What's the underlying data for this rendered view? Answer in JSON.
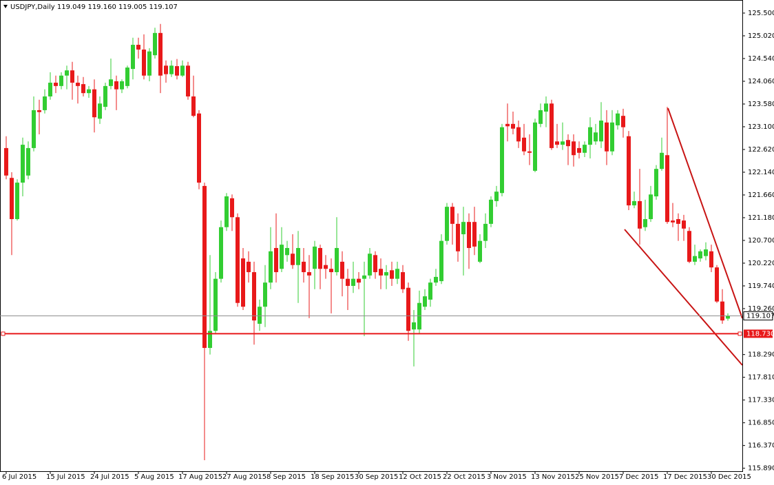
{
  "chart_data": {
    "type": "candlestick",
    "title": "USDJPY,Daily",
    "quote_labels": [
      "119.049",
      "119.160",
      "119.005",
      "119.107"
    ],
    "up_color": "#32cd32",
    "down_color": "#e8191a",
    "categories": [
      "6 Jul 2015",
      null,
      null,
      null,
      null,
      null,
      null,
      null,
      "15 Jul 2015",
      null,
      null,
      null,
      null,
      null,
      null,
      null,
      "24 Jul 2015",
      null,
      null,
      null,
      null,
      null,
      null,
      null,
      "5 Aug 2015",
      null,
      null,
      null,
      null,
      null,
      null,
      null,
      "17 Aug 2015",
      null,
      null,
      null,
      null,
      null,
      null,
      null,
      "27 Aug 2015",
      null,
      null,
      null,
      null,
      null,
      null,
      null,
      "8 Sep 2015",
      null,
      null,
      null,
      null,
      null,
      null,
      null,
      "18 Sep 2015",
      null,
      null,
      null,
      null,
      null,
      null,
      null,
      "30 Sep 2015",
      null,
      null,
      null,
      null,
      null,
      null,
      null,
      "12 Oct 2015",
      null,
      null,
      null,
      null,
      null,
      null,
      null,
      "22 Oct 2015",
      null,
      null,
      null,
      null,
      null,
      null,
      null,
      "3 Nov 2015",
      null,
      null,
      null,
      null,
      null,
      null,
      null,
      "13 Nov 2015",
      null,
      null,
      null,
      null,
      null,
      null,
      null,
      "25 Nov 2015",
      null,
      null,
      null,
      null,
      null,
      null,
      null,
      "7 Dec 2015",
      null,
      null,
      null,
      null,
      null,
      null,
      null,
      "17 Dec 2015",
      null,
      null,
      null,
      null,
      null,
      null,
      null,
      "30 Dec 2015",
      null,
      null,
      null
    ],
    "open": [
      122.65,
      122.02,
      121.15,
      121.92,
      122.07,
      122.65,
      123.45,
      123.45,
      123.74,
      124.03,
      123.96,
      124.18,
      124.29,
      124.03,
      124.0,
      123.81,
      123.89,
      123.27,
      123.52,
      123.96,
      124.06,
      123.89,
      123.96,
      124.32,
      124.83,
      124.73,
      124.18,
      124.61,
      125.08,
      124.39,
      124.21,
      124.38,
      124.18,
      124.39,
      123.74,
      123.38,
      121.85,
      118.43,
      118.79,
      119.89,
      120.98,
      121.59,
      121.19,
      120.32,
      120.25,
      120.03,
      118.94,
      119.3,
      119.81,
      120.54,
      120.1,
      120.39,
      120.42,
      120.18,
      120.25,
      120.03,
      120.1,
      120.54,
      120.18,
      120.1,
      120.03,
      120.25,
      119.89,
      119.74,
      119.89,
      119.89,
      119.96,
      120.39,
      120.1,
      119.96,
      120.07,
      119.89,
      120.03,
      119.7,
      118.82,
      118.82,
      119.3,
      119.45,
      119.81,
      119.84,
      120.69,
      121.41,
      121.05,
      120.83,
      121.09,
      121.09,
      120.25,
      120.69,
      121.05,
      121.53,
      121.7,
      123.16,
      123.16,
      123.09,
      122.87,
      122.58,
      122.17,
      123.16,
      123.42,
      123.59,
      122.79,
      122.72,
      122.82,
      122.79,
      122.65,
      122.55,
      122.72,
      122.79,
      122.79,
      123.19,
      122.58,
      123.13,
      123.33,
      122.9,
      121.44,
      121.53,
      120.98,
      121.15,
      121.63,
      122.21,
      122.5,
      121.12,
      121.15,
      121.12,
      120.9,
      120.25,
      120.32,
      120.37,
      120.47,
      120.13,
      119.41,
      119.049
    ],
    "high": [
      122.9,
      122.14,
      121.99,
      122.87,
      122.79,
      123.74,
      123.67,
      123.89,
      124.25,
      124.18,
      124.25,
      124.39,
      124.47,
      124.18,
      124.15,
      123.96,
      124.1,
      123.74,
      124.03,
      124.54,
      124.18,
      124.1,
      124.39,
      124.98,
      124.98,
      125.05,
      124.76,
      125.19,
      125.27,
      124.5,
      124.5,
      124.53,
      124.5,
      124.47,
      124.18,
      123.45,
      121.92,
      120.39,
      120.03,
      121.12,
      121.7,
      121.67,
      121.27,
      120.54,
      120.47,
      120.25,
      119.45,
      120.18,
      120.98,
      121.27,
      120.98,
      120.69,
      120.83,
      120.9,
      120.54,
      120.39,
      120.69,
      120.61,
      120.39,
      120.32,
      121.19,
      120.47,
      120.1,
      120.25,
      120.03,
      120.25,
      120.54,
      120.47,
      120.32,
      120.18,
      120.25,
      120.25,
      120.18,
      119.81,
      119.23,
      119.64,
      119.67,
      119.89,
      120.1,
      120.83,
      121.49,
      121.49,
      121.27,
      121.41,
      121.27,
      121.41,
      120.83,
      121.27,
      121.63,
      121.85,
      123.16,
      123.59,
      123.42,
      123.23,
      123.16,
      122.94,
      123.27,
      123.59,
      123.74,
      123.67,
      123.16,
      123.19,
      122.94,
      122.94,
      122.79,
      122.79,
      123.3,
      123.16,
      123.62,
      123.45,
      123.45,
      123.45,
      123.48,
      123.01,
      121.73,
      122.21,
      121.56,
      121.85,
      122.29,
      122.87,
      123.52,
      121.49,
      121.27,
      121.24,
      120.98,
      120.61,
      120.51,
      120.66,
      120.61,
      120.18,
      119.67,
      119.16
    ],
    "low": [
      121.99,
      120.39,
      121.12,
      121.63,
      121.99,
      122.58,
      122.94,
      123.38,
      123.67,
      123.81,
      123.89,
      123.89,
      123.67,
      123.59,
      123.74,
      123.71,
      122.98,
      123.16,
      123.45,
      123.89,
      123.45,
      123.81,
      123.91,
      124.1,
      124.54,
      124.1,
      124.06,
      124.54,
      123.81,
      124.03,
      124.15,
      124.1,
      124.15,
      123.67,
      123.3,
      121.78,
      116.06,
      118.29,
      118.72,
      119.81,
      120.9,
      120.9,
      119.3,
      119.23,
      119.81,
      118.5,
      118.79,
      118.87,
      119.67,
      119.81,
      120.03,
      120.25,
      120.1,
      119.38,
      119.81,
      119.06,
      119.67,
      119.67,
      119.89,
      119.16,
      119.96,
      119.52,
      119.23,
      119.59,
      119.67,
      118.68,
      119.89,
      119.89,
      119.67,
      119.67,
      119.74,
      119.78,
      119.59,
      118.58,
      118.04,
      118.72,
      119.23,
      119.3,
      119.74,
      119.78,
      120.61,
      120.61,
      120.25,
      119.96,
      120.1,
      120.39,
      120.22,
      120.54,
      120.98,
      121.41,
      121.63,
      122.79,
      122.94,
      122.65,
      122.5,
      122.29,
      122.14,
      123.09,
      123.09,
      122.61,
      122.65,
      122.61,
      122.29,
      122.26,
      122.43,
      122.46,
      122.43,
      122.72,
      122.65,
      122.29,
      122.5,
      123.04,
      122.87,
      121.34,
      121.38,
      120.61,
      120.9,
      121.09,
      121.56,
      122.17,
      121.05,
      120.98,
      120.69,
      120.69,
      120.22,
      120.18,
      120.25,
      120.28,
      120.03,
      119.38,
      118.94,
      119.005
    ],
    "close": [
      122.07,
      121.15,
      121.92,
      122.72,
      122.65,
      123.45,
      123.41,
      123.74,
      124.03,
      123.96,
      124.18,
      124.29,
      124.03,
      123.96,
      123.81,
      123.89,
      123.3,
      123.59,
      123.96,
      124.1,
      123.89,
      124.06,
      124.35,
      124.83,
      124.73,
      124.18,
      124.69,
      125.08,
      124.18,
      124.21,
      124.39,
      124.18,
      124.39,
      123.74,
      123.33,
      121.92,
      118.43,
      118.79,
      119.89,
      120.98,
      121.63,
      121.19,
      119.38,
      119.3,
      120.03,
      119.01,
      119.3,
      119.81,
      120.47,
      120.03,
      120.61,
      120.54,
      120.18,
      120.54,
      120.03,
      119.96,
      120.57,
      120.1,
      120.1,
      120.03,
      120.54,
      119.89,
      119.74,
      119.89,
      119.81,
      119.96,
      120.42,
      120.03,
      119.96,
      120.03,
      119.89,
      120.1,
      119.67,
      118.79,
      118.97,
      119.38,
      119.52,
      119.81,
      119.93,
      120.69,
      121.41,
      121.05,
      120.47,
      121.09,
      120.54,
      120.57,
      120.69,
      121.05,
      121.56,
      121.73,
      123.09,
      123.11,
      123.06,
      122.79,
      122.58,
      122.55,
      123.19,
      123.45,
      123.59,
      122.65,
      122.72,
      122.79,
      122.69,
      122.5,
      122.55,
      122.72,
      123.09,
      122.98,
      123.23,
      122.58,
      123.19,
      123.38,
      123.09,
      121.44,
      121.53,
      120.95,
      121.15,
      121.67,
      122.21,
      122.55,
      121.09,
      121.08,
      121.05,
      120.95,
      120.25,
      120.37,
      120.47,
      120.51,
      120.13,
      119.41,
      119.01,
      119.107
    ],
    "ylim": [
      115.827,
      125.776
    ],
    "yticks": [
      {
        "value": 125.5,
        "label": "125.500"
      },
      {
        "value": 125.02,
        "label": "125.020"
      },
      {
        "value": 124.54,
        "label": "124.540"
      },
      {
        "value": 124.06,
        "label": "124.060"
      },
      {
        "value": 123.58,
        "label": "123.580"
      },
      {
        "value": 123.1,
        "label": "123.100"
      },
      {
        "value": 122.62,
        "label": "122.620"
      },
      {
        "value": 122.14,
        "label": "122.140"
      },
      {
        "value": 121.66,
        "label": "121.660"
      },
      {
        "value": 121.18,
        "label": "121.180"
      },
      {
        "value": 120.7,
        "label": "120.700"
      },
      {
        "value": 120.22,
        "label": "120.220"
      },
      {
        "value": 119.74,
        "label": "119.740"
      },
      {
        "value": 119.26,
        "label": "119.260"
      },
      {
        "value": 118.29,
        "label": "118.290"
      },
      {
        "value": 117.81,
        "label": "117.810"
      },
      {
        "value": 117.33,
        "label": "117.330"
      },
      {
        "value": 116.85,
        "label": "116.850"
      },
      {
        "value": 116.37,
        "label": "116.370"
      },
      {
        "value": 115.89,
        "label": "115.890"
      }
    ],
    "hline": {
      "value": 118.73,
      "label": "118.730",
      "color": "#e8191a"
    },
    "bid_color": "#8c8c8c"
  }
}
